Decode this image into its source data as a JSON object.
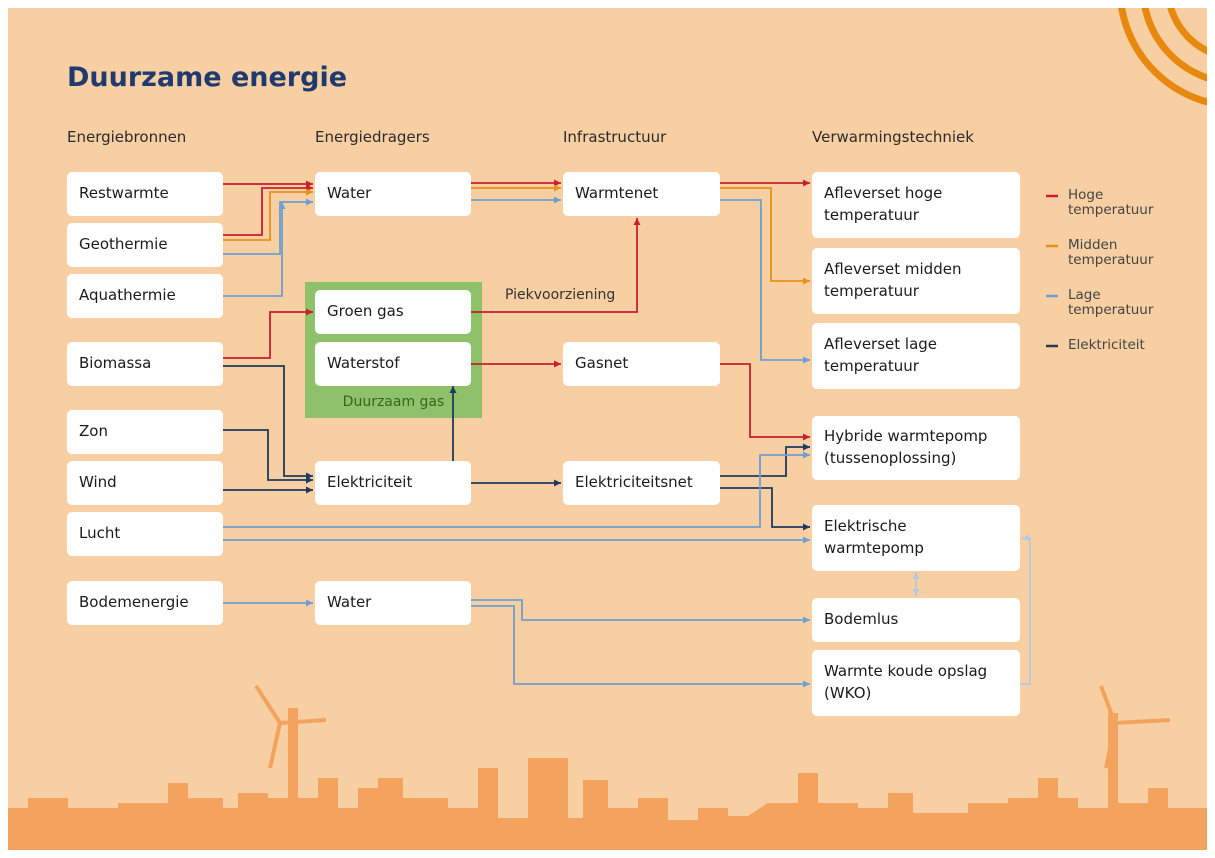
{
  "title": "Duurzame energie",
  "columns": [
    "Energiebronnen",
    "Energiedragers",
    "Infrastructuur",
    "Verwarmingstechniek"
  ],
  "nodes": [
    "Restwarmte",
    "Geothermie",
    "Aquathermie",
    "Biomassa",
    "Zon",
    "Wind",
    "Lucht",
    "Bodemenergie",
    "Water",
    "Groen gas",
    "Waterstof",
    "Elektriciteit",
    "Water",
    "Warmtenet",
    "Gasnet",
    "Elektriciteitsnet",
    "Afleverset hoge temperatuur",
    "Afleverset midden temperatuur",
    "Afleverset lage temperatuur",
    "Hybride warmtepomp (tussenoplossing)",
    "Elektrische warmtepomp",
    "Bodemlus",
    "Warmte koude opslag (WKO)"
  ],
  "group_label": "Duurzaam gas",
  "edge_label": "Piekvoorziening",
  "legend": [
    {
      "label": "Hoge temperatuur",
      "color": "#c8202f"
    },
    {
      "label": "Midden temperatuur",
      "color": "#e8901a"
    },
    {
      "label": "Lage temperatuur",
      "color": "#6f9fcf"
    },
    {
      "label": "Elektriciteit",
      "color": "#1f3a5f"
    }
  ]
}
